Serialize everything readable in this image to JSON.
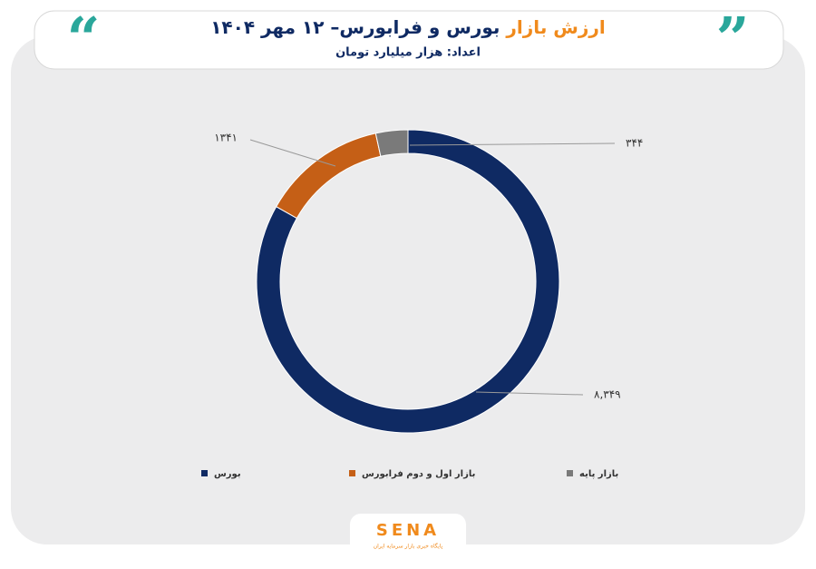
{
  "chart_data": {
    "type": "donut",
    "title_highlight": "ارزش بازار",
    "title": "بورس و فرابورس– ۱۲ مهر ۱۴۰۴",
    "subtitle": "اعداد: هزار میلیارد تومان",
    "categories": [
      "بورس",
      "بازار اول و دوم فرابورس",
      "بازار پایه"
    ],
    "values": [
      8349,
      1341,
      344
    ],
    "value_labels": [
      "۸,۳۴۹",
      "۱۳۴۱",
      "۳۴۴"
    ],
    "colors": [
      "#0f2a63",
      "#c55f16",
      "#7a7a7a"
    ],
    "legend": "bottom"
  },
  "logo": {
    "name": "SENA",
    "tagline": "پایگاه خبری بازار سرمایه ایران"
  }
}
